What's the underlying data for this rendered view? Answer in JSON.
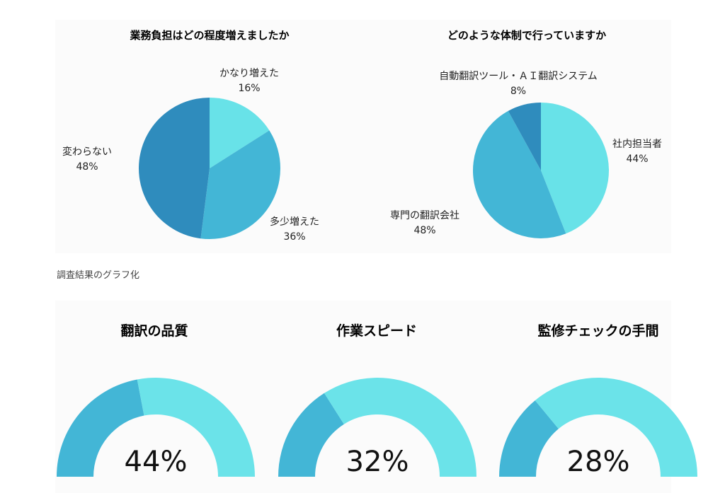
{
  "caption": "調査結果のグラフ化",
  "colors": {
    "dark": "#2f8cbd",
    "mid": "#43b6d6",
    "light": "#68e2e8",
    "remain": "#6be3e9"
  },
  "chart_data": [
    {
      "type": "pie",
      "title": "業務負担はどの程度増えましたか",
      "slices": [
        {
          "label": "かなり増えた",
          "value": 16,
          "display": "16%"
        },
        {
          "label": "多少増えた",
          "value": 36,
          "display": "36%"
        },
        {
          "label": "変わらない",
          "value": 48,
          "display": "48%"
        }
      ]
    },
    {
      "type": "pie",
      "title": "どのような体制で行っていますか",
      "slices": [
        {
          "label": "社内担当者",
          "value": 44,
          "display": "44%"
        },
        {
          "label": "専門の翻訳会社",
          "value": 48,
          "display": "48%"
        },
        {
          "label": "自動翻訳ツール・ＡＩ翻訳システム",
          "value": 8,
          "display": "8%"
        }
      ]
    },
    {
      "type": "gauge",
      "title": "翻訳の品質",
      "value": 44,
      "display": "44%"
    },
    {
      "type": "gauge",
      "title": "作業スピード",
      "value": 32,
      "display": "32%"
    },
    {
      "type": "gauge",
      "title": "監修チェックの手間",
      "value": 28,
      "display": "28%"
    }
  ]
}
